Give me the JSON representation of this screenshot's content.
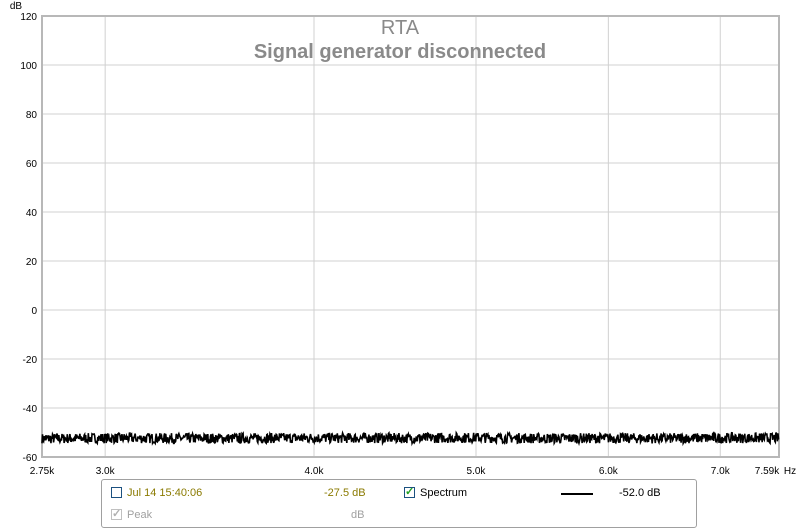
{
  "chart_data": {
    "type": "line",
    "title": "RTA",
    "subtitle": "Signal generator disconnected",
    "ylabel": "dB",
    "xunit": "Hz",
    "x_scale": "log",
    "xlim": [
      2750,
      7590
    ],
    "ylim": [
      -60,
      120
    ],
    "yticks": [
      120,
      100,
      80,
      60,
      40,
      20,
      0,
      -20,
      -40,
      -60
    ],
    "ytick_labels": [
      "120",
      "100",
      "80",
      "60",
      "40",
      "20",
      "0",
      "-20",
      "-40",
      "-60"
    ],
    "xticks": [
      2750,
      3000,
      4000,
      5000,
      6000,
      7000,
      7590
    ],
    "xtick_labels": [
      "2.75k",
      "3.0k",
      "4.0k",
      "5.0k",
      "6.0k",
      "7.0k",
      "7.59k"
    ],
    "grid": true,
    "series": [
      {
        "name": "Spectrum",
        "color": "#000000",
        "x": [
          2750,
          3000,
          3500,
          4000,
          4500,
          5000,
          5500,
          6000,
          6500,
          7000,
          7590
        ],
        "y": [
          -52.5,
          -52.3,
          -52.4,
          -52.2,
          -52.3,
          -52.1,
          -52.4,
          -52.3,
          -52.4,
          -52.2,
          -52.3
        ]
      }
    ]
  },
  "legend": {
    "row1": {
      "measurement_label": "Jul 14 15:40:06",
      "level": "-27.5 dB",
      "spectrum_label": "Spectrum",
      "spectrum_value": "-52.0 dB"
    },
    "row2": {
      "peak_label": "Peak",
      "peak_unit": "dB"
    }
  },
  "colors": {
    "plot_border": "#b8b8b8",
    "grid": "#d0d0d0",
    "title": "#8a8a8a",
    "measurement_text": "#8a7a00",
    "trace": "#000000"
  }
}
